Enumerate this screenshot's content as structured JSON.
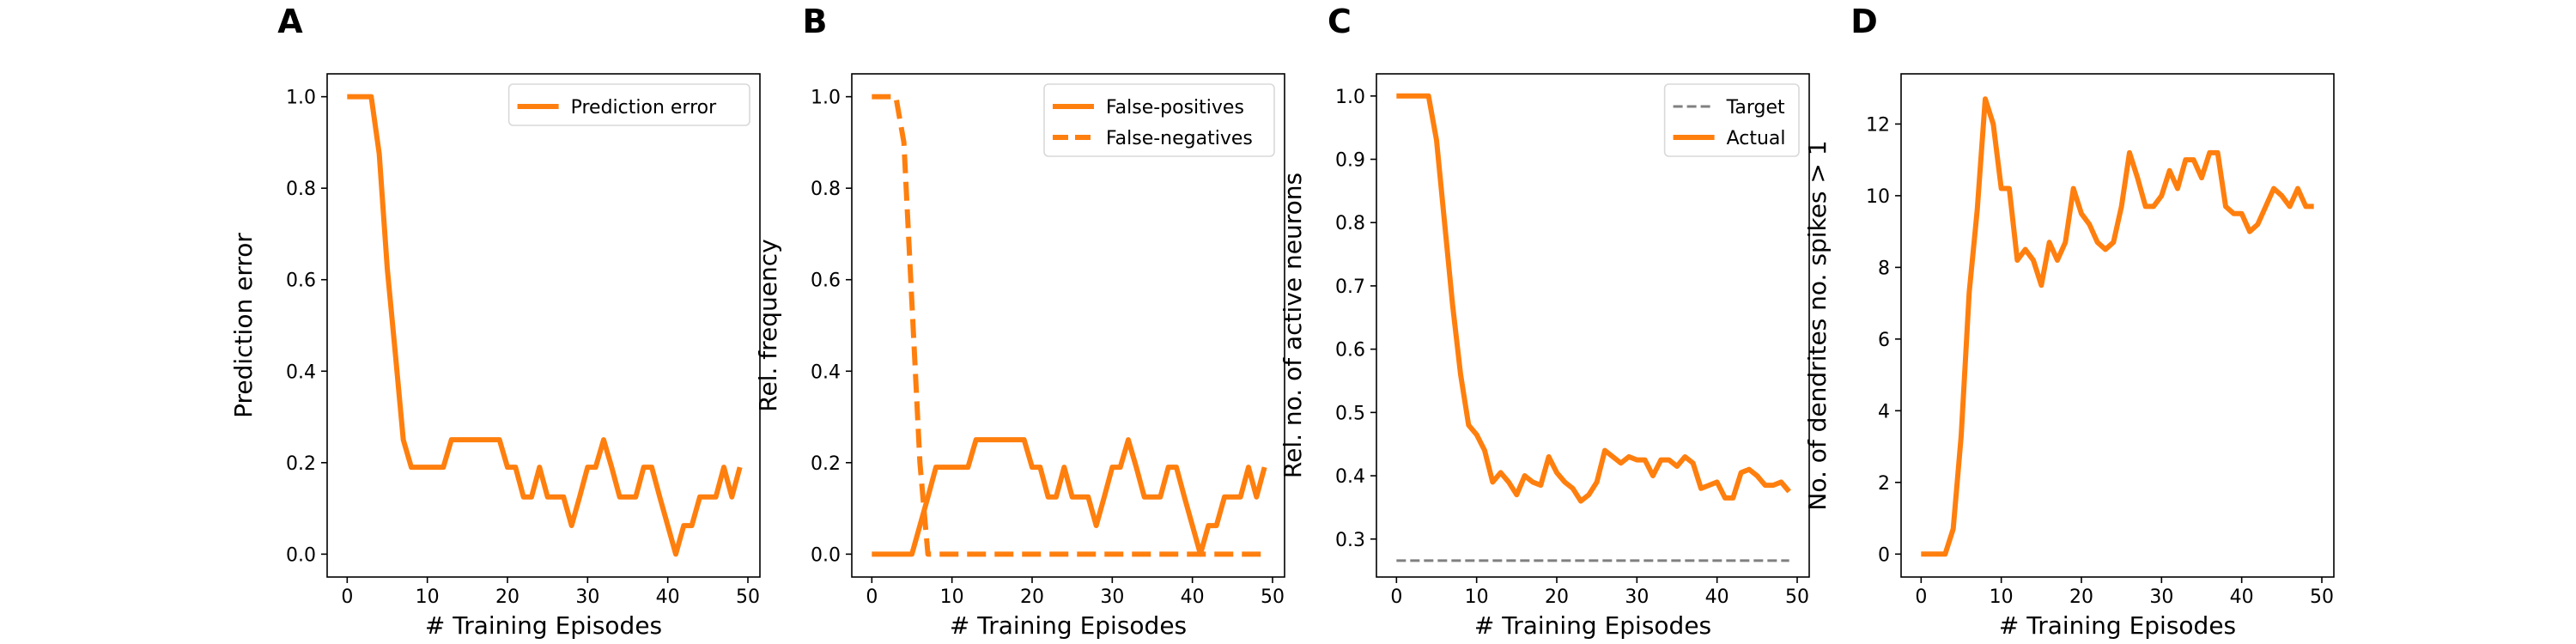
{
  "colors": {
    "orange": "#ff7f0e",
    "gray": "#808080",
    "axis": "#000000"
  },
  "chart_data": [
    {
      "panel": "A",
      "type": "line",
      "xlabel": "# Training Episodes",
      "ylabel": "Prediction error",
      "xlim": [
        -2.5,
        51.5
      ],
      "ylim": [
        -0.05,
        1.05
      ],
      "xticks": [
        0,
        10,
        20,
        30,
        40,
        50
      ],
      "yticks": [
        0.0,
        0.2,
        0.4,
        0.6,
        0.8,
        1.0
      ],
      "ytick_labels": [
        "0.0",
        "0.2",
        "0.4",
        "0.6",
        "0.8",
        "1.0"
      ],
      "legend_position": "upper-right",
      "x": [
        0,
        1,
        2,
        3,
        4,
        5,
        6,
        7,
        8,
        9,
        10,
        11,
        12,
        13,
        14,
        15,
        16,
        17,
        18,
        19,
        20,
        21,
        22,
        23,
        24,
        25,
        26,
        27,
        28,
        29,
        30,
        31,
        32,
        33,
        34,
        35,
        36,
        37,
        38,
        39,
        40,
        41,
        42,
        43,
        44,
        45,
        46,
        47,
        48,
        49
      ],
      "series": [
        {
          "name": "Prediction error",
          "style": "solid",
          "color": "#ff7f0e",
          "values": [
            1.0,
            1.0,
            1.0,
            1.0,
            0.875,
            0.625,
            0.44,
            0.25,
            0.19,
            0.19,
            0.19,
            0.19,
            0.19,
            0.25,
            0.25,
            0.25,
            0.25,
            0.25,
            0.25,
            0.25,
            0.19,
            0.19,
            0.125,
            0.125,
            0.19,
            0.125,
            0.125,
            0.125,
            0.0625,
            0.125,
            0.19,
            0.19,
            0.25,
            0.19,
            0.125,
            0.125,
            0.125,
            0.19,
            0.19,
            0.125,
            0.0625,
            0.0,
            0.0625,
            0.0625,
            0.125,
            0.125,
            0.125,
            0.19,
            0.125,
            0.19
          ]
        }
      ]
    },
    {
      "panel": "B",
      "type": "line",
      "xlabel": "# Training Episodes",
      "ylabel": "Rel. frequency",
      "xlim": [
        -2.5,
        51.5
      ],
      "ylim": [
        -0.05,
        1.05
      ],
      "xticks": [
        0,
        10,
        20,
        30,
        40,
        50
      ],
      "yticks": [
        0.0,
        0.2,
        0.4,
        0.6,
        0.8,
        1.0
      ],
      "ytick_labels": [
        "0.0",
        "0.2",
        "0.4",
        "0.6",
        "0.8",
        "1.0"
      ],
      "legend_position": "upper-right",
      "x": [
        0,
        1,
        2,
        3,
        4,
        5,
        6,
        7,
        8,
        9,
        10,
        11,
        12,
        13,
        14,
        15,
        16,
        17,
        18,
        19,
        20,
        21,
        22,
        23,
        24,
        25,
        26,
        27,
        28,
        29,
        30,
        31,
        32,
        33,
        34,
        35,
        36,
        37,
        38,
        39,
        40,
        41,
        42,
        43,
        44,
        45,
        46,
        47,
        48,
        49
      ],
      "series": [
        {
          "name": "False-positives",
          "style": "solid",
          "color": "#ff7f0e",
          "values": [
            0,
            0,
            0,
            0,
            0,
            0,
            0.0625,
            0.125,
            0.19,
            0.19,
            0.19,
            0.19,
            0.19,
            0.25,
            0.25,
            0.25,
            0.25,
            0.25,
            0.25,
            0.25,
            0.19,
            0.19,
            0.125,
            0.125,
            0.19,
            0.125,
            0.125,
            0.125,
            0.0625,
            0.125,
            0.19,
            0.19,
            0.25,
            0.19,
            0.125,
            0.125,
            0.125,
            0.19,
            0.19,
            0.125,
            0.0625,
            0.0,
            0.0625,
            0.0625,
            0.125,
            0.125,
            0.125,
            0.19,
            0.125,
            0.19
          ]
        },
        {
          "name": "False-negatives",
          "style": "dashed",
          "color": "#ff7f0e",
          "values": [
            1.0,
            1.0,
            1.0,
            1.0,
            0.9,
            0.55,
            0.2,
            0.0,
            0,
            0,
            0,
            0,
            0,
            0,
            0,
            0,
            0,
            0,
            0,
            0,
            0,
            0,
            0,
            0,
            0,
            0,
            0,
            0,
            0,
            0,
            0,
            0,
            0,
            0,
            0,
            0,
            0,
            0,
            0,
            0,
            0,
            0,
            0,
            0,
            0,
            0,
            0,
            0,
            0,
            0
          ]
        }
      ]
    },
    {
      "panel": "C",
      "type": "line",
      "xlabel": "# Training Episodes",
      "ylabel": "Rel. no. of active neurons",
      "xlim": [
        -2.5,
        51.5
      ],
      "ylim": [
        0.24,
        1.035
      ],
      "xticks": [
        0,
        10,
        20,
        30,
        40,
        50
      ],
      "yticks": [
        0.3,
        0.4,
        0.5,
        0.6,
        0.7,
        0.8,
        0.9,
        1.0
      ],
      "ytick_labels": [
        "0.3",
        "0.4",
        "0.5",
        "0.6",
        "0.7",
        "0.8",
        "0.9",
        "1.0"
      ],
      "legend_position": "upper-right",
      "x": [
        0,
        1,
        2,
        3,
        4,
        5,
        6,
        7,
        8,
        9,
        10,
        11,
        12,
        13,
        14,
        15,
        16,
        17,
        18,
        19,
        20,
        21,
        22,
        23,
        24,
        25,
        26,
        27,
        28,
        29,
        30,
        31,
        32,
        33,
        34,
        35,
        36,
        37,
        38,
        39,
        40,
        41,
        42,
        43,
        44,
        45,
        46,
        47,
        48,
        49
      ],
      "series": [
        {
          "name": "Target",
          "style": "dashed-thin",
          "color": "#808080",
          "values": [
            0.266,
            0.266,
            0.266,
            0.266,
            0.266,
            0.266,
            0.266,
            0.266,
            0.266,
            0.266,
            0.266,
            0.266,
            0.266,
            0.266,
            0.266,
            0.266,
            0.266,
            0.266,
            0.266,
            0.266,
            0.266,
            0.266,
            0.266,
            0.266,
            0.266,
            0.266,
            0.266,
            0.266,
            0.266,
            0.266,
            0.266,
            0.266,
            0.266,
            0.266,
            0.266,
            0.266,
            0.266,
            0.266,
            0.266,
            0.266,
            0.266,
            0.266,
            0.266,
            0.266,
            0.266,
            0.266,
            0.266,
            0.266,
            0.266,
            0.266
          ]
        },
        {
          "name": "Actual",
          "style": "solid",
          "color": "#ff7f0e",
          "values": [
            1.0,
            1.0,
            1.0,
            1.0,
            1.0,
            0.93,
            0.8,
            0.67,
            0.56,
            0.48,
            0.465,
            0.44,
            0.39,
            0.405,
            0.39,
            0.37,
            0.4,
            0.39,
            0.385,
            0.43,
            0.405,
            0.39,
            0.38,
            0.36,
            0.37,
            0.39,
            0.44,
            0.43,
            0.42,
            0.43,
            0.425,
            0.425,
            0.4,
            0.425,
            0.425,
            0.415,
            0.43,
            0.42,
            0.38,
            0.385,
            0.39,
            0.365,
            0.365,
            0.405,
            0.41,
            0.4,
            0.385,
            0.385,
            0.39,
            0.375
          ]
        }
      ]
    },
    {
      "panel": "D",
      "type": "line",
      "xlabel": "# Training Episodes",
      "ylabel": "No. of dendrites no. spikes > 1",
      "xlim": [
        -2.5,
        51.5
      ],
      "ylim": [
        -0.64,
        13.4
      ],
      "xticks": [
        0,
        10,
        20,
        30,
        40,
        50
      ],
      "yticks": [
        0,
        2,
        4,
        6,
        8,
        10,
        12
      ],
      "ytick_labels": [
        "0",
        "2",
        "4",
        "6",
        "8",
        "10",
        "12"
      ],
      "x": [
        0,
        1,
        2,
        3,
        4,
        5,
        6,
        7,
        8,
        9,
        10,
        11,
        12,
        13,
        14,
        15,
        16,
        17,
        18,
        19,
        20,
        21,
        22,
        23,
        24,
        25,
        26,
        27,
        28,
        29,
        30,
        31,
        32,
        33,
        34,
        35,
        36,
        37,
        38,
        39,
        40,
        41,
        42,
        43,
        44,
        45,
        46,
        47,
        48,
        49
      ],
      "series": [
        {
          "style": "solid",
          "color": "#ff7f0e",
          "values": [
            0,
            0,
            0,
            0,
            0.7,
            3.3,
            7.3,
            9.6,
            12.7,
            12.0,
            10.2,
            10.2,
            8.2,
            8.5,
            8.2,
            7.5,
            8.7,
            8.2,
            8.7,
            10.2,
            9.5,
            9.2,
            8.7,
            8.5,
            8.7,
            9.7,
            11.2,
            10.5,
            9.7,
            9.7,
            10.0,
            10.7,
            10.2,
            11.0,
            11.0,
            10.5,
            11.2,
            11.2,
            9.7,
            9.5,
            9.5,
            9.0,
            9.2,
            9.7,
            10.2,
            10.0,
            9.7,
            10.2,
            9.7,
            9.7
          ]
        }
      ]
    }
  ]
}
